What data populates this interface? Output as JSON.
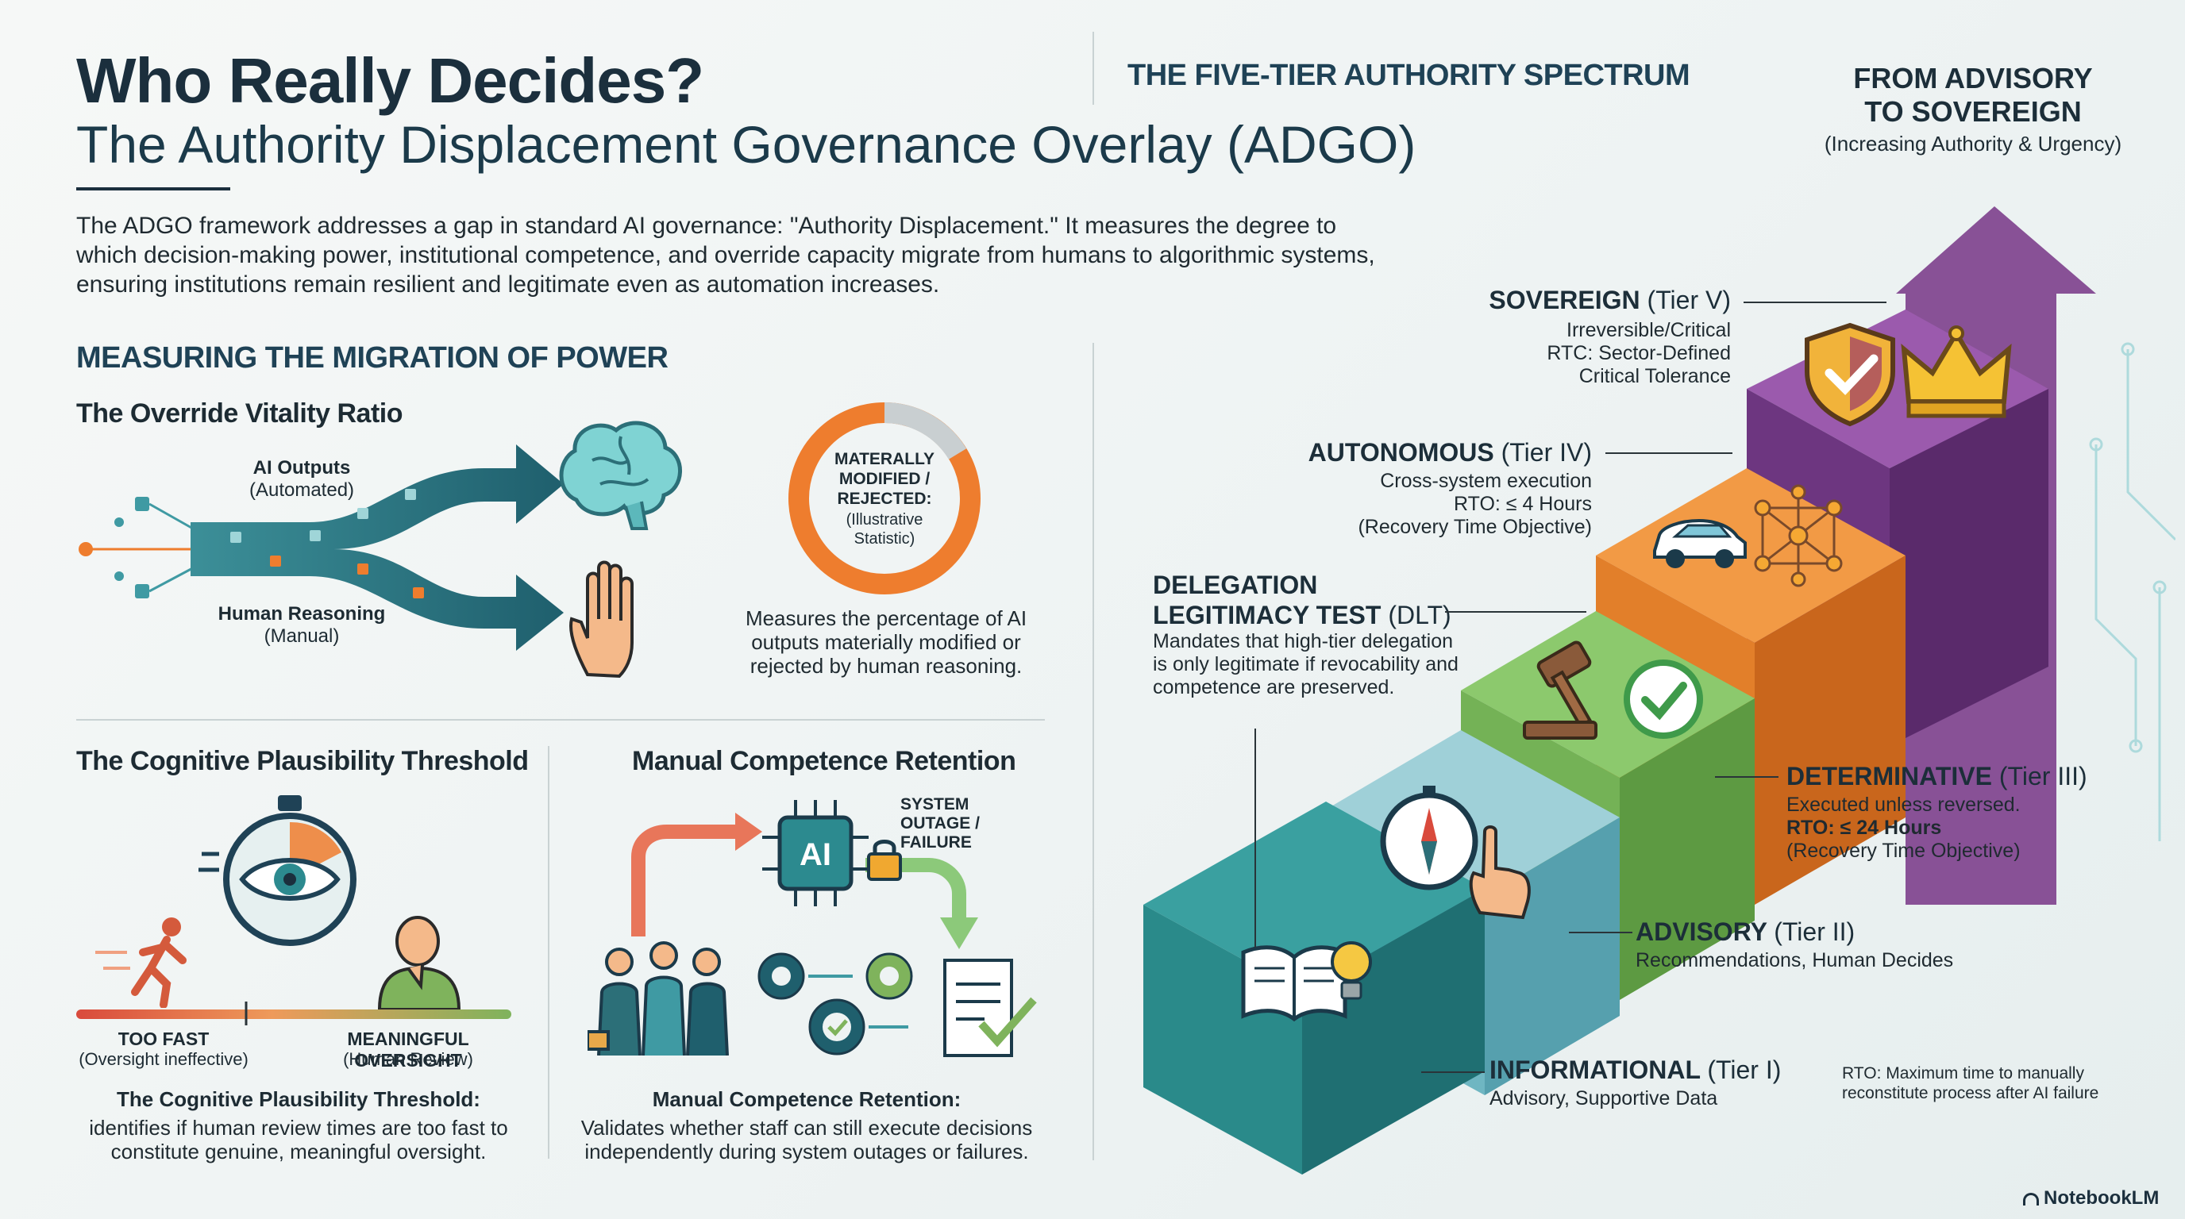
{
  "header": {
    "title": "Who Really Decides?",
    "subtitle": "The Authority Displacement Governance Overlay (ADGO)",
    "intro": "The ADGO framework addresses a gap in standard AI governance: \"Authority Displacement.\" It measures the degree to which decision-making power, institutional competence, and override capacity migrate from humans to algorithmic systems, ensuring institutions remain resilient and legitimate even as automation increases."
  },
  "migration": {
    "heading": "MEASURING THE MIGRATION OF POWER",
    "override": {
      "title": "The Override Vitality Ratio",
      "ai_label": "AI Outputs",
      "ai_sub": "(Automated)",
      "human_label": "Human Reasoning",
      "human_sub": "(Manual)",
      "donut_label": "MATERALLY MODIFIED / REJECTED:",
      "donut_sub": "(Illustrative Statistic)",
      "description": "Measures the percentage of AI outputs materially modified or rejected by human reasoning."
    },
    "cpt": {
      "title": "The Cognitive Plausibility Threshold",
      "too_fast": "TOO FAST",
      "too_fast_sub": "(Oversight ineffective)",
      "meaningful": "MEANINGFUL OVERSIGHT",
      "meaningful_sub": "(Human Review)",
      "desc_title": "The Cognitive Plausibility Threshold:",
      "description": "identifies if human review times are too fast to constitute genuine, meaningful oversight."
    },
    "mcr": {
      "title": "Manual Competence Retention",
      "outage": "SYSTEM OUTAGE / FAILURE",
      "ai_chip": "AI",
      "desc_title": "Manual Competence Retention:",
      "description": "Validates whether staff can still execute decisions independently during system outages or failures."
    }
  },
  "spectrum": {
    "heading": "THE FIVE-TIER AUTHORITY SPECTRUM",
    "arrow_title": "FROM ADVISORY TO SOVEREIGN",
    "arrow_sub": "(Increasing Authority & Urgency)",
    "tiers": [
      {
        "name": "INFORMATIONAL",
        "tier": "(Tier I)",
        "lines": [
          "Advisory, Supportive Data"
        ],
        "color": "#2a8a8a"
      },
      {
        "name": "ADVISORY",
        "tier": "(Tier II)",
        "lines": [
          "Recommendations, Human Decides"
        ],
        "color": "#6fb6c2"
      },
      {
        "name": "DETERMINATIVE",
        "tier": "(Tier III)",
        "lines": [
          "Executed unless reversed.",
          "RTO: ≤ 24 Hours",
          "(Recovery Time Objective)"
        ],
        "color": "#78b35c"
      },
      {
        "name": "AUTONOMOUS",
        "tier": "(Tier IV)",
        "lines": [
          "Cross-system execution",
          "RTO: ≤ 4 Hours",
          "(Recovery Time Objective)"
        ],
        "color": "#ee8a2f"
      },
      {
        "name": "SOVEREIGN",
        "tier": "(Tier V)",
        "lines": [
          "Irreversible/Critical",
          "RTC: Sector-Defined",
          "Critical Tolerance"
        ],
        "color": "#7d3f8c"
      }
    ],
    "dlt": {
      "title": "DELEGATION LEGITIMACY TEST",
      "abbr": "(DLT)",
      "description": "Mandates that high-tier delegation is only legitimate if revocability and competence are preserved."
    },
    "rto_note": "RTO: Maximum time to manually reconstitute process after AI failure"
  },
  "footer": {
    "brand": "NotebookLM"
  },
  "colors": {
    "teal_dark": "#1f6f78",
    "orange": "#ee7d2e",
    "green": "#78b35c",
    "purple": "#7d3f8c"
  },
  "icons": [
    "brain-icon",
    "hand-icon",
    "stopwatch-eye-icon",
    "runner-icon",
    "thinker-icon",
    "ai-chip-icon",
    "lock-icon",
    "team-icon",
    "gears-icon",
    "document-check-icon",
    "book-icon",
    "lightbulb-icon",
    "compass-icon",
    "pointing-hand-icon",
    "gavel-icon",
    "check-icon",
    "car-icon",
    "network-icon",
    "shield-check-icon",
    "crown-icon"
  ]
}
